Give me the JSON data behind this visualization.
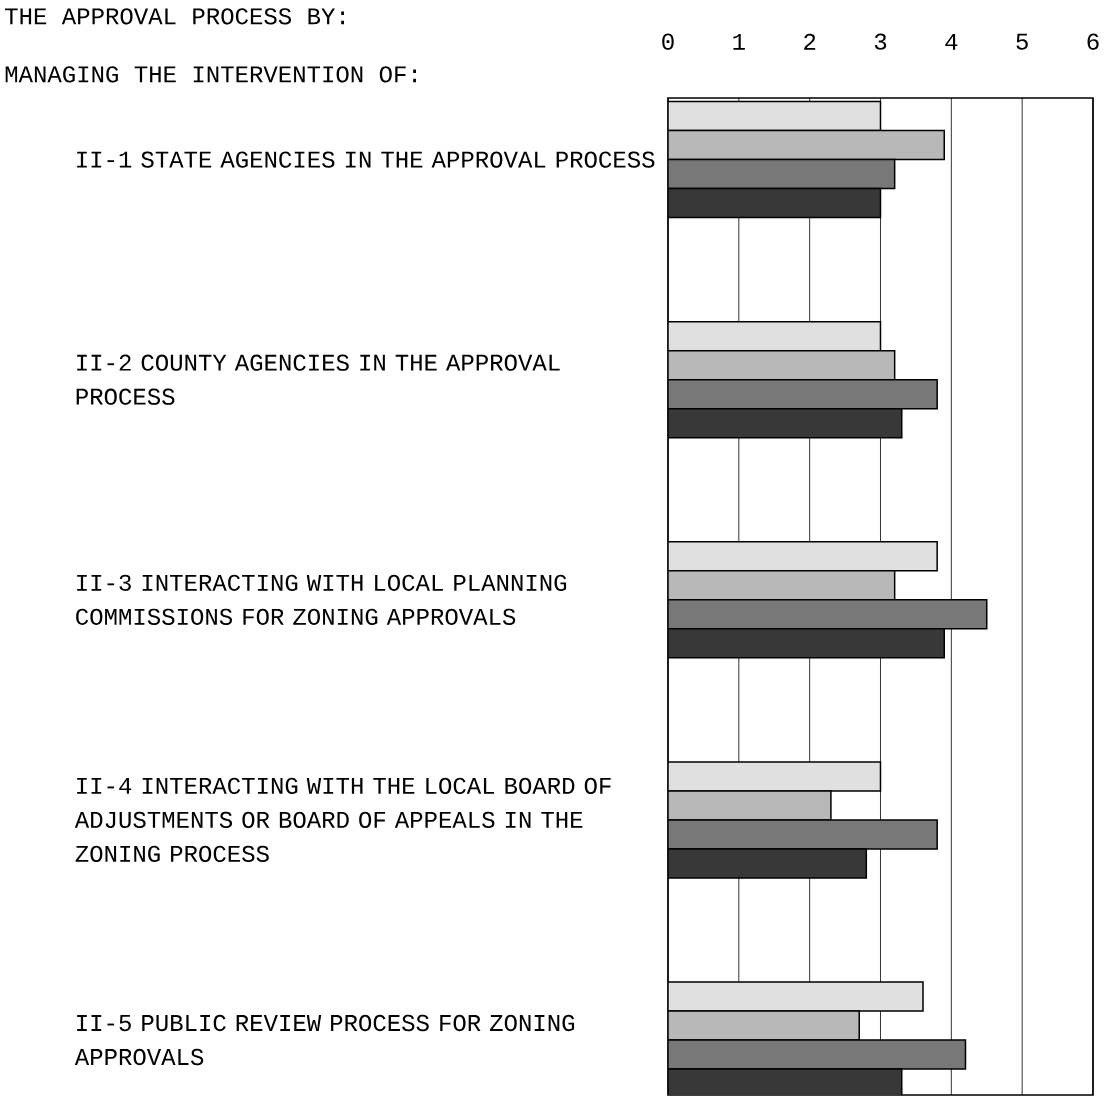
{
  "chart_data": {
    "type": "bar",
    "orientation": "horizontal",
    "title": "THE APPROVAL PROCESS BY:",
    "subtitle": "MANAGING THE INTERVENTION OF:",
    "categories": [
      "II-1  STATE AGENCIES IN THE APPROVAL PROCESS",
      "II-2  COUNTY AGENCIES IN THE APPROVAL PROCESS",
      "II-3  INTERACTING WITH LOCAL PLANNING COMMISSIONS FOR ZONING APPROVALS",
      "II-4  INTERACTING WITH THE LOCAL BOARD OF ADJUSTMENTS OR BOARD OF APPEALS IN THE ZONING PROCESS",
      "II-5  PUBLIC REVIEW PROCESS FOR ZONING APPROVALS"
    ],
    "series": [
      {
        "color": "#e0e0e0",
        "values": [
          3.0,
          3.0,
          3.8,
          3.0,
          3.6
        ]
      },
      {
        "color": "#b8b8b8",
        "values": [
          3.9,
          3.2,
          3.2,
          2.3,
          2.7
        ]
      },
      {
        "color": "#787878",
        "values": [
          3.2,
          3.8,
          4.5,
          3.8,
          4.2
        ]
      },
      {
        "color": "#383838",
        "values": [
          3.0,
          3.3,
          3.9,
          2.8,
          3.3
        ]
      }
    ],
    "xlim": [
      0,
      6
    ],
    "xticks": [
      0,
      1,
      2,
      3,
      4,
      5,
      6
    ],
    "grid": "x"
  }
}
